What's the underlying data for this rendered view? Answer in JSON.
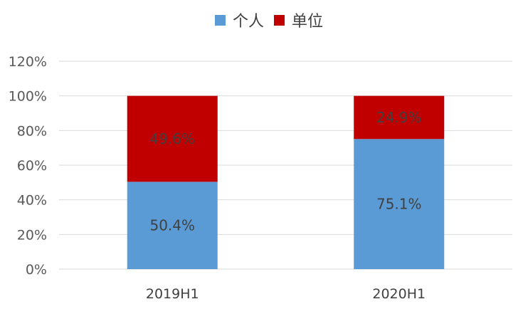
{
  "chart_data": {
    "type": "bar",
    "stacked": true,
    "categories": [
      "2019H1",
      "2020H1"
    ],
    "series": [
      {
        "name": "个人",
        "values": [
          50.4,
          75.1
        ],
        "labels": [
          "50.4%",
          "75.1%"
        ],
        "color": "#5b9bd5"
      },
      {
        "name": "单位",
        "values": [
          49.6,
          24.9
        ],
        "labels": [
          "49.6%",
          "24.9%"
        ],
        "color": "#c00000"
      }
    ],
    "y_ticks": [
      "0%",
      "20%",
      "40%",
      "60%",
      "80%",
      "100%",
      "120%"
    ],
    "ylim": [
      0,
      120
    ],
    "grid": true,
    "legend_position": "top"
  }
}
